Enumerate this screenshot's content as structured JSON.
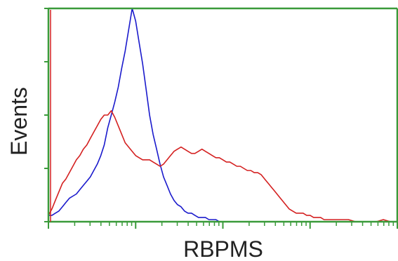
{
  "chart_data": {
    "type": "line",
    "xlabel": "RBPMS",
    "ylabel": "Events",
    "xscale": "log",
    "xlim": [
      0,
      100
    ],
    "ylim": [
      0,
      100
    ],
    "grid": false,
    "legend": "none",
    "colors": {
      "frame": "#3a9a3a",
      "y_left_edge": "#d42020"
    },
    "series": [
      {
        "color": "#1a1acc",
        "x": [
          0,
          1,
          2,
          3,
          4,
          5,
          6,
          7,
          8,
          9,
          10,
          11,
          12,
          13,
          14,
          15,
          16,
          17,
          18,
          19,
          20,
          21,
          22,
          23,
          24,
          25,
          26,
          27,
          28,
          29,
          30,
          31,
          32,
          33,
          34,
          35,
          36,
          37,
          38,
          39,
          40,
          41,
          42,
          43,
          44,
          45,
          46,
          47,
          48,
          49,
          50,
          52,
          54,
          56,
          58,
          60,
          65,
          70,
          80,
          90,
          100
        ],
        "y": [
          3,
          3,
          4,
          5,
          7,
          9,
          11,
          12,
          13,
          15,
          17,
          19,
          21,
          24,
          27,
          31,
          36,
          44,
          50,
          56,
          63,
          72,
          80,
          90,
          100,
          94,
          84,
          74,
          62,
          50,
          41,
          34,
          27,
          21,
          17,
          13,
          10,
          8,
          7,
          5,
          4,
          4,
          3,
          2,
          2,
          2,
          1,
          1,
          1,
          0,
          0,
          0,
          0,
          0,
          0,
          0,
          0,
          0,
          0,
          0,
          0
        ]
      },
      {
        "color": "#d42020",
        "x": [
          0,
          1,
          2,
          3,
          4,
          5,
          6,
          7,
          8,
          9,
          10,
          11,
          12,
          13,
          14,
          15,
          16,
          17,
          18,
          19,
          20,
          21,
          22,
          23,
          24,
          25,
          26,
          27,
          28,
          29,
          30,
          31,
          32,
          33,
          34,
          35,
          36,
          37,
          38,
          39,
          40,
          41,
          42,
          43,
          44,
          45,
          46,
          47,
          48,
          49,
          50,
          51,
          52,
          53,
          54,
          55,
          56,
          57,
          58,
          59,
          60,
          61,
          62,
          63,
          64,
          65,
          66,
          67,
          68,
          69,
          70,
          71,
          72,
          73,
          74,
          75,
          76,
          77,
          78,
          79,
          80,
          82,
          84,
          86,
          88,
          90,
          92,
          94,
          96,
          98,
          100
        ],
        "y": [
          3,
          6,
          10,
          14,
          18,
          20,
          23,
          26,
          29,
          31,
          34,
          36,
          39,
          42,
          45,
          48,
          50,
          50,
          52,
          49,
          45,
          41,
          37,
          35,
          33,
          31,
          30,
          29,
          29,
          29,
          28,
          27,
          26,
          27,
          29,
          31,
          33,
          34,
          35,
          34,
          33,
          32,
          32,
          33,
          34,
          33,
          32,
          31,
          30,
          30,
          29,
          28,
          28,
          27,
          26,
          26,
          25,
          24,
          24,
          23,
          23,
          22,
          20,
          18,
          16,
          14,
          12,
          10,
          8,
          6,
          5,
          4,
          4,
          4,
          3,
          3,
          2,
          2,
          2,
          1,
          1,
          1,
          1,
          1,
          0,
          0,
          0,
          0,
          1,
          0,
          0
        ]
      }
    ]
  }
}
